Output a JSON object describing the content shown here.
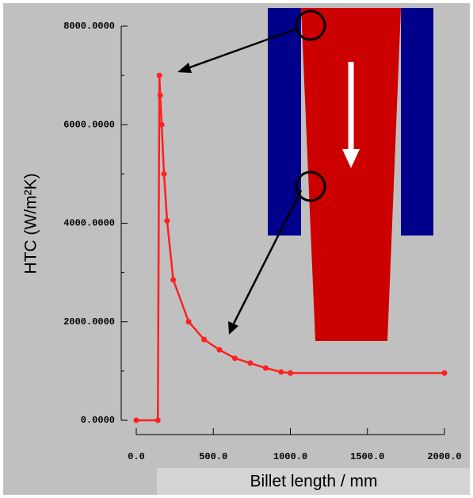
{
  "chart_data": {
    "type": "line",
    "xlabel": "Billet length / mm",
    "ylabel": "HTC (W/m²K)",
    "x": [
      0,
      140,
      150,
      155,
      165,
      180,
      200,
      240,
      340,
      440,
      540,
      640,
      740,
      840,
      940,
      1000,
      2000
    ],
    "series": [
      {
        "color": "#ff2020",
        "values": [
          0,
          0,
          7000,
          6600,
          6000,
          5000,
          4050,
          2850,
          2000,
          1640,
          1430,
          1260,
          1160,
          1060,
          980,
          960,
          960
        ]
      }
    ],
    "xlim": [
      0,
      2000
    ],
    "xticks": [
      {
        "value": 0,
        "label": "0.0"
      },
      {
        "value": 500,
        "label": "500.0"
      },
      {
        "value": 1000,
        "label": "1000.0"
      },
      {
        "value": 1500,
        "label": "1500.0"
      },
      {
        "value": 2000,
        "label": "2000.0"
      }
    ],
    "ylim": [
      0,
      8000
    ],
    "yticks": [
      {
        "value": 0,
        "label": "0.0000"
      },
      {
        "value": 2000,
        "label": "2000.0000"
      },
      {
        "value": 4000,
        "label": "4000.0000"
      },
      {
        "value": 6000,
        "label": "6000.0000"
      },
      {
        "value": 8000,
        "label": "8000.0000"
      }
    ],
    "yminorticks": [
      1000,
      3000,
      5000,
      7000
    ]
  }
}
